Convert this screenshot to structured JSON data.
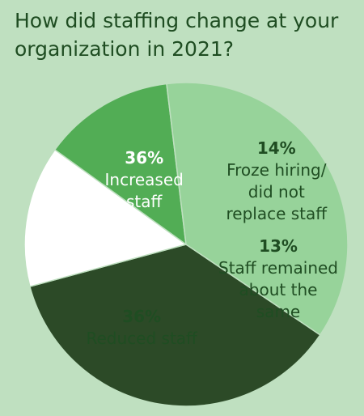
{
  "colors": {
    "background": "#bfe0c0",
    "title": "#1f4d22",
    "label_dark_text": "#1f4d22",
    "label_light_text": "#ffffff",
    "slice_stroke": "#bfe0c0"
  },
  "chart_data": {
    "type": "pie",
    "title": "How did staffing change at your organization in 2021?",
    "unit": "%",
    "categories": [
      "Increased staff",
      "Froze hiring/ did not replace staff",
      "Staff remained about the same",
      "Reduced staff"
    ],
    "values": [
      36,
      14,
      13,
      36
    ],
    "slices": [
      {
        "label": "Increased staff",
        "value": 36,
        "value_label": "36%",
        "label_lines": "Increased\nstaff",
        "color": "#2c4a27",
        "text_color": "#ffffff"
      },
      {
        "label": "Froze hiring/ did not replace staff",
        "value": 14,
        "value_label": "14%",
        "label_lines": "Froze hiring/\ndid not\nreplace staff",
        "color": "#ffffff",
        "text_color": "#1f4d22"
      },
      {
        "label": "Staff remained about the same",
        "value": 13,
        "value_label": "13%",
        "label_lines": "Staff remained\nabout the\nsame",
        "color": "#52ad55",
        "text_color": "#1f4d22"
      },
      {
        "label": "Reduced staff",
        "value": 36,
        "value_label": "36%",
        "label_lines": "Reduced staff",
        "color": "#97d39a",
        "text_color": "#1f4d22"
      }
    ],
    "legend": "none"
  }
}
